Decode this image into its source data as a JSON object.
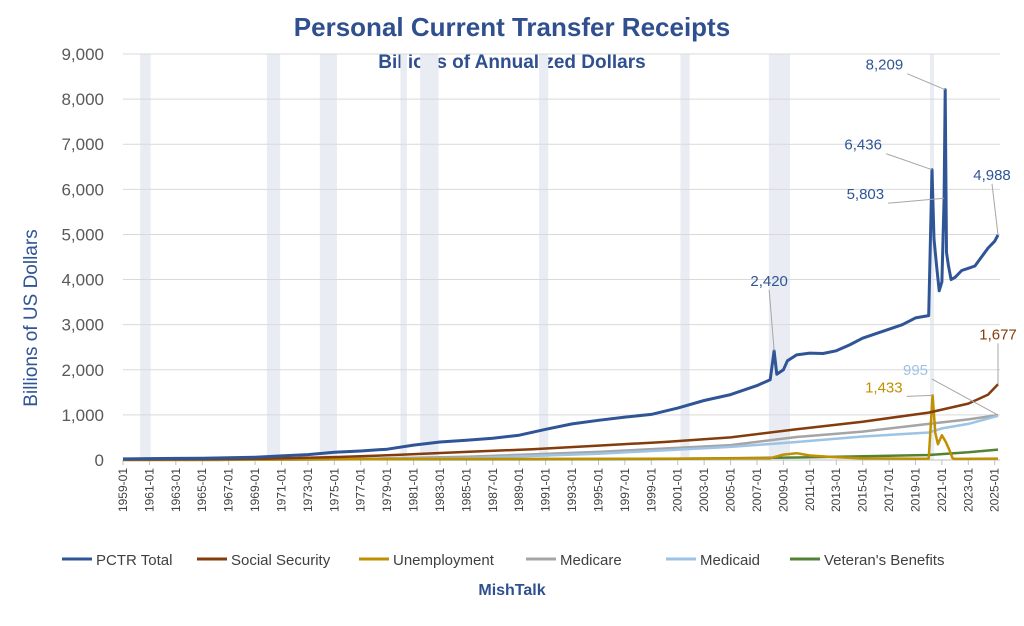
{
  "colors": {
    "title": "#2f4f8f",
    "grid": "#d9d9d9",
    "recession": "#e9edf3",
    "axis": "#bfbfbf"
  },
  "chart_data": {
    "type": "line",
    "title": "Personal Current Transfer Receipts",
    "subtitle": "Billions of Annualized Dollars",
    "ylabel": "Billions of US Dollars",
    "source": "MishTalk",
    "xlim": [
      1959.0,
      2025.4
    ],
    "ylim": [
      0,
      9000
    ],
    "yticks": [
      0,
      1000,
      2000,
      3000,
      4000,
      5000,
      6000,
      7000,
      8000,
      9000
    ],
    "ytick_labels": [
      "0",
      "1,000",
      "2,000",
      "3,000",
      "4,000",
      "5,000",
      "6,000",
      "7,000",
      "8,000",
      "9,000"
    ],
    "xticks": [
      "1959-01",
      "1961-01",
      "1963-01",
      "1965-01",
      "1967-01",
      "1969-01",
      "1971-01",
      "1973-01",
      "1975-01",
      "1977-01",
      "1979-01",
      "1981-01",
      "1983-01",
      "1985-01",
      "1987-01",
      "1989-01",
      "1991-01",
      "1993-01",
      "1995-01",
      "1997-01",
      "1999-01",
      "2001-01",
      "2003-01",
      "2005-01",
      "2007-01",
      "2009-01",
      "2011-01",
      "2013-01",
      "2015-01",
      "2017-01",
      "2019-01",
      "2021-01",
      "2023-01",
      "2025-01"
    ],
    "recessions": [
      [
        1960.3,
        1961.1
      ],
      [
        1969.9,
        1970.9
      ],
      [
        1973.9,
        1975.2
      ],
      [
        1980.0,
        1980.5
      ],
      [
        1981.5,
        1982.9
      ],
      [
        1990.5,
        1991.2
      ],
      [
        2001.2,
        2001.9
      ],
      [
        2007.9,
        2009.5
      ],
      [
        2020.1,
        2020.4
      ]
    ],
    "series": [
      {
        "name": "PCTR Total",
        "color": "#2f5597",
        "points": [
          [
            1959.0,
            25
          ],
          [
            1961.0,
            32
          ],
          [
            1963.0,
            36
          ],
          [
            1965.0,
            40
          ],
          [
            1967.0,
            50
          ],
          [
            1969.0,
            62
          ],
          [
            1971.0,
            90
          ],
          [
            1973.0,
            120
          ],
          [
            1975.0,
            170
          ],
          [
            1977.0,
            200
          ],
          [
            1979.0,
            240
          ],
          [
            1981.0,
            330
          ],
          [
            1983.0,
            400
          ],
          [
            1985.0,
            440
          ],
          [
            1987.0,
            480
          ],
          [
            1989.0,
            550
          ],
          [
            1991.0,
            680
          ],
          [
            1993.0,
            800
          ],
          [
            1995.0,
            880
          ],
          [
            1997.0,
            950
          ],
          [
            1999.0,
            1010
          ],
          [
            2001.0,
            1150
          ],
          [
            2003.0,
            1320
          ],
          [
            2005.0,
            1450
          ],
          [
            2007.0,
            1650
          ],
          [
            2008.0,
            1780
          ],
          [
            2008.3,
            2420
          ],
          [
            2008.5,
            1900
          ],
          [
            2009.0,
            2000
          ],
          [
            2009.3,
            2200
          ],
          [
            2010.0,
            2330
          ],
          [
            2011.0,
            2370
          ],
          [
            2012.0,
            2360
          ],
          [
            2013.0,
            2420
          ],
          [
            2014.0,
            2550
          ],
          [
            2015.0,
            2700
          ],
          [
            2016.0,
            2800
          ],
          [
            2017.0,
            2900
          ],
          [
            2018.0,
            3000
          ],
          [
            2019.0,
            3150
          ],
          [
            2020.0,
            3200
          ],
          [
            2020.25,
            6436
          ],
          [
            2020.4,
            4900
          ],
          [
            2020.6,
            4300
          ],
          [
            2020.8,
            3750
          ],
          [
            2021.0,
            3950
          ],
          [
            2021.17,
            5803
          ],
          [
            2021.25,
            8209
          ],
          [
            2021.35,
            4600
          ],
          [
            2021.5,
            4300
          ],
          [
            2021.7,
            4000
          ],
          [
            2022.0,
            4050
          ],
          [
            2022.5,
            4200
          ],
          [
            2023.0,
            4250
          ],
          [
            2023.5,
            4300
          ],
          [
            2024.0,
            4500
          ],
          [
            2024.5,
            4700
          ],
          [
            2025.0,
            4850
          ],
          [
            2025.25,
            4988
          ]
        ]
      },
      {
        "name": "Social Security",
        "color": "#843c0c",
        "points": [
          [
            1959.0,
            10
          ],
          [
            1965.0,
            16
          ],
          [
            1970.0,
            30
          ],
          [
            1975.0,
            65
          ],
          [
            1980.0,
            115
          ],
          [
            1985.0,
            180
          ],
          [
            1990.0,
            240
          ],
          [
            1995.0,
            320
          ],
          [
            2000.0,
            400
          ],
          [
            2005.0,
            500
          ],
          [
            2010.0,
            680
          ],
          [
            2015.0,
            850
          ],
          [
            2020.0,
            1050
          ],
          [
            2023.0,
            1250
          ],
          [
            2024.5,
            1450
          ],
          [
            2025.25,
            1677
          ]
        ]
      },
      {
        "name": "Unemployment",
        "color": "#bf9000",
        "points": [
          [
            1959.0,
            3
          ],
          [
            1975.0,
            15
          ],
          [
            1982.0,
            25
          ],
          [
            1991.0,
            25
          ],
          [
            2001.0,
            30
          ],
          [
            2008.0,
            40
          ],
          [
            2009.0,
            120
          ],
          [
            2010.0,
            150
          ],
          [
            2011.0,
            100
          ],
          [
            2013.0,
            60
          ],
          [
            2015.0,
            35
          ],
          [
            2019.0,
            28
          ],
          [
            2020.0,
            30
          ],
          [
            2020.3,
            1433
          ],
          [
            2020.5,
            600
          ],
          [
            2020.7,
            350
          ],
          [
            2021.0,
            550
          ],
          [
            2021.3,
            400
          ],
          [
            2021.6,
            200
          ],
          [
            2021.8,
            40
          ],
          [
            2022.0,
            25
          ],
          [
            2025.25,
            30
          ]
        ]
      },
      {
        "name": "Medicare",
        "color": "#a5a5a5",
        "points": [
          [
            1959.0,
            0
          ],
          [
            1966.0,
            0
          ],
          [
            1967.0,
            5
          ],
          [
            1975.0,
            15
          ],
          [
            1985.0,
            70
          ],
          [
            1995.0,
            180
          ],
          [
            2005.0,
            330
          ],
          [
            2010.0,
            510
          ],
          [
            2015.0,
            630
          ],
          [
            2020.0,
            800
          ],
          [
            2023.0,
            900
          ],
          [
            2025.25,
            995
          ]
        ]
      },
      {
        "name": "Medicaid",
        "color": "#9dc3e6",
        "points": [
          [
            1959.0,
            0
          ],
          [
            1966.0,
            0
          ],
          [
            1967.0,
            3
          ],
          [
            1975.0,
            12
          ],
          [
            1985.0,
            40
          ],
          [
            1995.0,
            140
          ],
          [
            2005.0,
            290
          ],
          [
            2010.0,
            400
          ],
          [
            2015.0,
            520
          ],
          [
            2020.0,
            610
          ],
          [
            2021.0,
            700
          ],
          [
            2023.0,
            800
          ],
          [
            2025.25,
            980
          ]
        ]
      },
      {
        "name": "Veteran's Benefits",
        "color": "#548235",
        "points": [
          [
            1959.0,
            4
          ],
          [
            1975.0,
            15
          ],
          [
            1990.0,
            18
          ],
          [
            2000.0,
            25
          ],
          [
            2010.0,
            55
          ],
          [
            2020.0,
            110
          ],
          [
            2023.0,
            170
          ],
          [
            2025.25,
            230
          ]
        ]
      }
    ],
    "annotations": [
      {
        "text": "2,420",
        "color": "#2f5597",
        "x": 2008.3,
        "y": 2420
      },
      {
        "text": "6,436",
        "color": "#2f5597",
        "x": 2020.25,
        "y": 6436
      },
      {
        "text": "8,209",
        "color": "#2f5597",
        "x": 2021.25,
        "y": 8209
      },
      {
        "text": "5,803",
        "color": "#2f5597",
        "x": 2021.17,
        "y": 5803
      },
      {
        "text": "4,988",
        "color": "#2f5597",
        "x": 2025.25,
        "y": 4988
      },
      {
        "text": "1,677",
        "color": "#843c0c",
        "x": 2025.25,
        "y": 1677
      },
      {
        "text": "995",
        "color": "#9dc3e6",
        "x": 2025.25,
        "y": 995
      },
      {
        "text": "1,433",
        "color": "#bf9000",
        "x": 2020.3,
        "y": 1433
      }
    ]
  }
}
